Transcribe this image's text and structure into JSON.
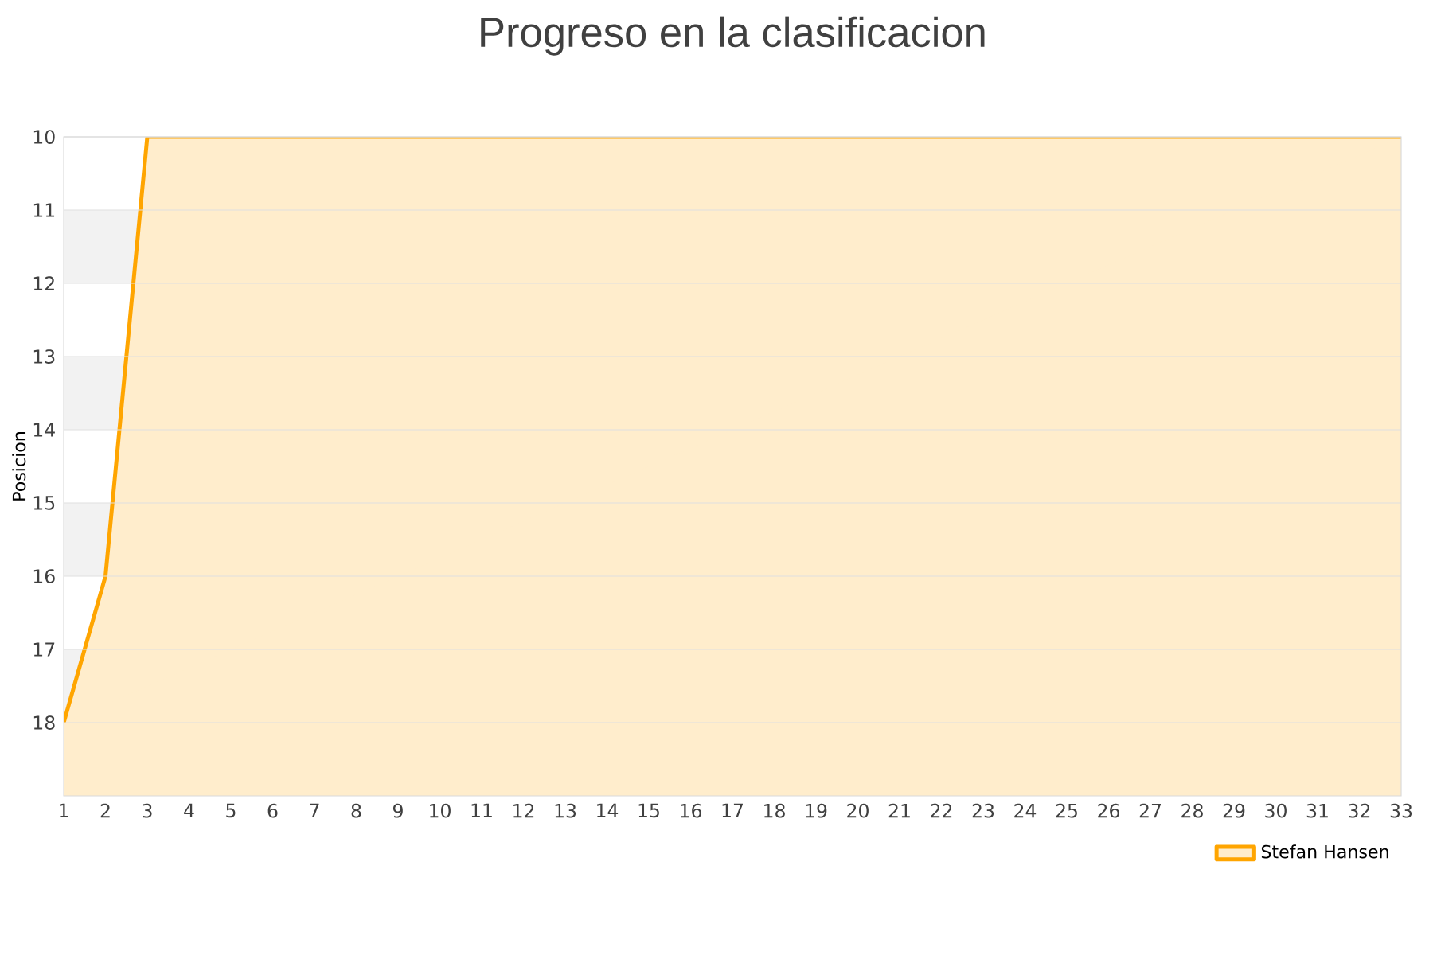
{
  "chart_data": {
    "type": "area",
    "title": "Progreso en la clasificacion",
    "ylabel": "Posicion",
    "x": [
      1,
      2,
      3,
      4,
      5,
      6,
      7,
      8,
      9,
      10,
      11,
      12,
      13,
      14,
      15,
      16,
      17,
      18,
      19,
      20,
      21,
      22,
      23,
      24,
      25,
      26,
      27,
      28,
      29,
      30,
      31,
      32,
      33
    ],
    "series": [
      {
        "name": "Stefan Hansen",
        "color": "#ffa500",
        "values": [
          18,
          16,
          10,
          10,
          10,
          10,
          10,
          10,
          10,
          10,
          10,
          10,
          10,
          10,
          10,
          10,
          10,
          10,
          10,
          10,
          10,
          10,
          10,
          10,
          10,
          10,
          10,
          10,
          10,
          10,
          10,
          10,
          10
        ]
      }
    ],
    "xlim": [
      1,
      33
    ],
    "xticks": [
      1,
      2,
      3,
      4,
      5,
      6,
      7,
      8,
      9,
      10,
      11,
      12,
      13,
      14,
      15,
      16,
      17,
      18,
      19,
      20,
      21,
      22,
      23,
      24,
      25,
      26,
      27,
      28,
      29,
      30,
      31,
      32,
      33
    ],
    "ylim": [
      19,
      10
    ],
    "yticks": [
      10,
      11,
      12,
      13,
      14,
      15,
      16,
      17,
      18
    ],
    "bands": [
      {
        "axis": "y",
        "from": 11,
        "to": 12,
        "color": "#f2f2f2"
      },
      {
        "axis": "y",
        "from": 13,
        "to": 14,
        "color": "#f2f2f2"
      },
      {
        "axis": "y",
        "from": 15,
        "to": 16,
        "color": "#f2f2f2"
      },
      {
        "axis": "y",
        "from": 17,
        "to": 18,
        "color": "#f2f2f2"
      }
    ],
    "grid": "y",
    "legend": "bottom right",
    "marker": "none",
    "line_style": "solid"
  }
}
